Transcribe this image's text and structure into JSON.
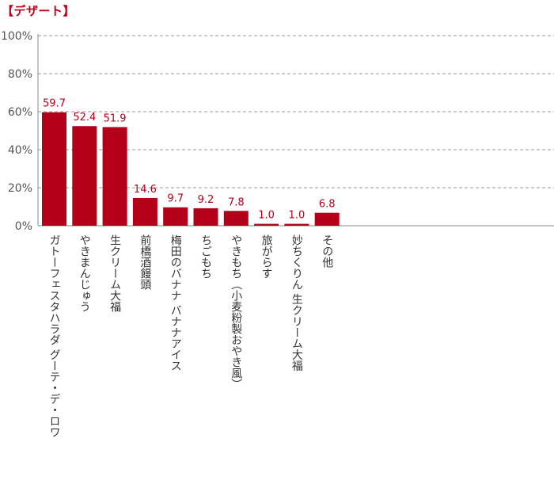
{
  "chart_data": {
    "type": "bar",
    "title": "【デザート】",
    "categories": [
      "ガトーフェスタハラダ グーテ・デ・ロワ",
      "やきまんじゅう",
      "生クリーム大福",
      "前橋酒饅頭",
      "梅田のバナナ バナナアイス",
      "ちごもち",
      "やきもち（小麦粉製おやき風）",
      "旅がらす",
      "妙ちくりん 生クリーム大福",
      "その他"
    ],
    "values": [
      59.7,
      52.4,
      51.9,
      14.6,
      9.7,
      9.2,
      7.8,
      1.0,
      1.0,
      6.8
    ],
    "value_labels": [
      "59.7",
      "52.4",
      "51.9",
      "14.6",
      "9.7",
      "9.2",
      "7.8",
      "1.0",
      "1.0",
      "6.8"
    ],
    "ylim": [
      0,
      100
    ],
    "yticks": [
      "0%",
      "20%",
      "40%",
      "60%",
      "80%",
      "100%"
    ],
    "grid": true,
    "xlabel": "",
    "ylabel": "",
    "colors": {
      "bar": "#b5001a",
      "label": "#b5001a",
      "grid": "#999999",
      "axis": "#888888"
    }
  }
}
